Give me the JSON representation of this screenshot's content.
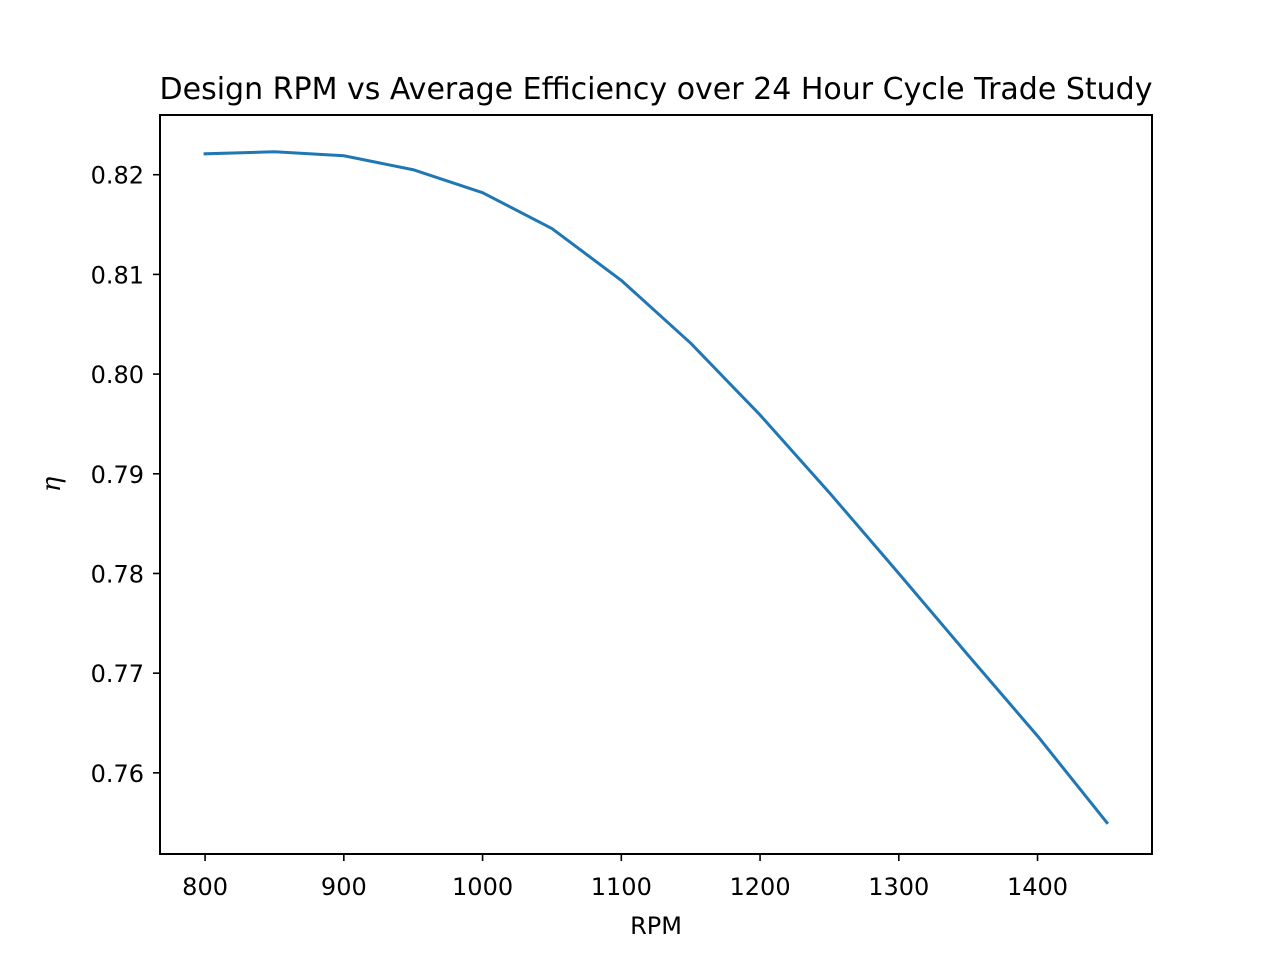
{
  "chart_data": {
    "type": "line",
    "title": "Design RPM vs Average Efficiency over 24 Hour Cycle Trade Study",
    "xlabel": "RPM",
    "ylabel": "η",
    "x": [
      800,
      850,
      900,
      950,
      1000,
      1050,
      1100,
      1150,
      1200,
      1250,
      1300,
      1350,
      1400,
      1450
    ],
    "series": [
      {
        "values": [
          0.8221,
          0.8223,
          0.8219,
          0.8205,
          0.8182,
          0.8146,
          0.8094,
          0.8031,
          0.7959,
          0.7881,
          0.78,
          0.7718,
          0.7637,
          0.755
        ],
        "color": "#1f77b4"
      }
    ],
    "xlim": [
      767.5,
      1482.5
    ],
    "ylim": [
      0.75186,
      0.82599
    ],
    "xticks": [
      800,
      900,
      1000,
      1100,
      1200,
      1300,
      1400
    ],
    "xtick_labels": [
      "800",
      "900",
      "1000",
      "1100",
      "1200",
      "1300",
      "1400"
    ],
    "yticks": [
      0.76,
      0.77,
      0.78,
      0.79,
      0.8,
      0.81,
      0.82
    ],
    "ytick_labels": [
      "0.76",
      "0.77",
      "0.78",
      "0.79",
      "0.80",
      "0.81",
      "0.82"
    ],
    "grid": false,
    "legend": "none"
  }
}
